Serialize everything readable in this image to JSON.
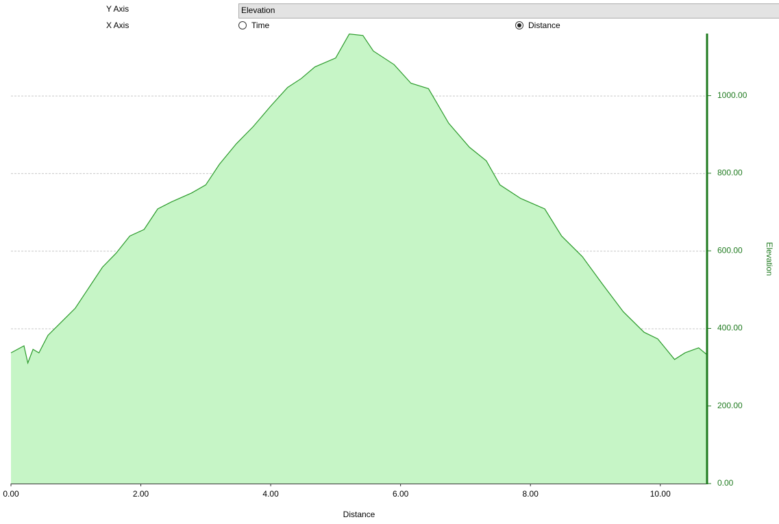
{
  "controls": {
    "y_axis_label": "Y Axis",
    "y_axis_value": "Elevation",
    "x_axis_label": "X Axis",
    "x_options": [
      "Time",
      "Distance"
    ],
    "x_selected": "Distance"
  },
  "chart_data": {
    "type": "area",
    "x_label": "Distance",
    "y_label": "Elevation",
    "color": "#2a9a2a",
    "fill": "#c6f5c6",
    "grid": true,
    "x": [
      0,
      0.2,
      0.26,
      0.34,
      0.43,
      0.57,
      0.78,
      0.99,
      1.2,
      1.41,
      1.62,
      1.83,
      2.05,
      2.26,
      2.47,
      2.78,
      3.0,
      3.21,
      3.47,
      3.73,
      4.0,
      4.26,
      4.47,
      4.68,
      5.0,
      5.21,
      5.42,
      5.58,
      5.9,
      6.16,
      6.43,
      6.74,
      7.06,
      7.32,
      7.53,
      7.85,
      8.22,
      8.48,
      8.8,
      9.11,
      9.43,
      9.75,
      9.96,
      10.22,
      10.38,
      10.59,
      10.72
    ],
    "values": [
      337,
      355,
      311,
      346,
      337,
      382,
      417,
      452,
      505,
      558,
      594,
      638,
      655,
      708,
      726,
      749,
      770,
      823,
      876,
      920,
      973,
      1021,
      1044,
      1074,
      1097,
      1159,
      1155,
      1115,
      1080,
      1032,
      1018,
      929,
      867,
      832,
      770,
      735,
      708,
      638,
      585,
      514,
      443,
      390,
      373,
      320,
      337,
      350,
      332
    ],
    "xlim": [
      0,
      10.72
    ],
    "ylim": [
      0,
      1160
    ],
    "xticks": [
      {
        "value": 0,
        "label": "0.00"
      },
      {
        "value": 2,
        "label": "2.00"
      },
      {
        "value": 4,
        "label": "4.00"
      },
      {
        "value": 6,
        "label": "6.00"
      },
      {
        "value": 8,
        "label": "8.00"
      },
      {
        "value": 10,
        "label": "10.00"
      }
    ],
    "yticks": [
      {
        "value": 0,
        "label": "0.00"
      },
      {
        "value": 200,
        "label": "200.00"
      },
      {
        "value": 400,
        "label": "400.00"
      },
      {
        "value": 600,
        "label": "600.00"
      },
      {
        "value": 800,
        "label": "800.00"
      },
      {
        "value": 1000,
        "label": "1000.00"
      }
    ]
  }
}
